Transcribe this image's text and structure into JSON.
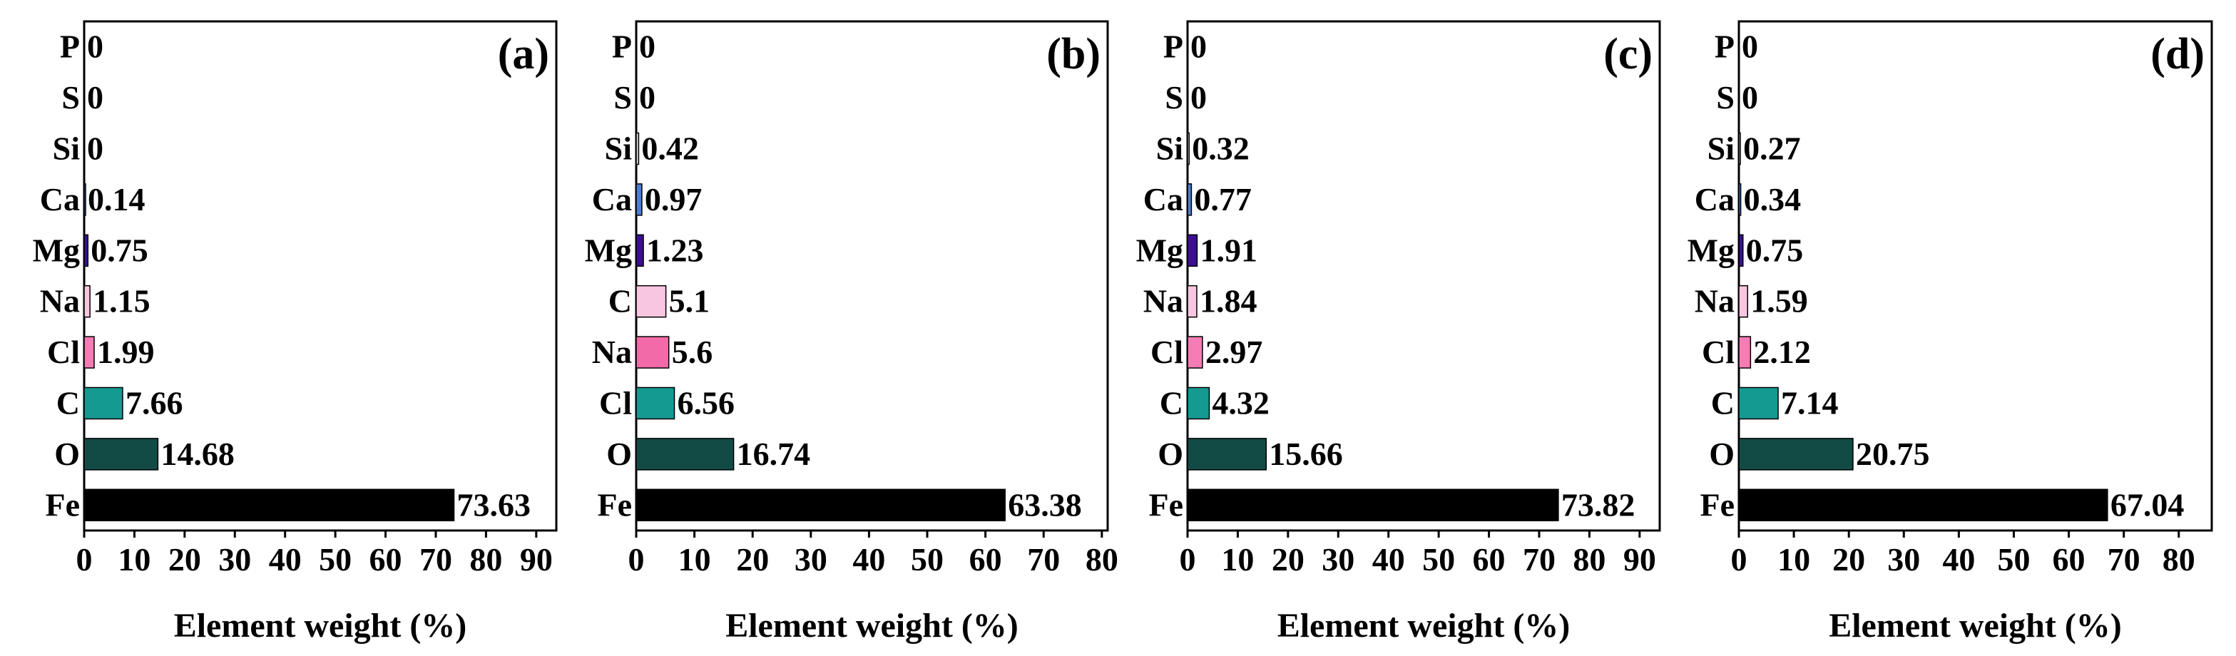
{
  "chart_data": [
    {
      "type": "bar",
      "orientation": "horizontal",
      "panel_label": "(a)",
      "xlabel": "Element weight (%)",
      "xlim": [
        0,
        94
      ],
      "xticks": [
        0,
        10,
        20,
        30,
        40,
        50,
        60,
        70,
        80,
        90
      ],
      "grid": false,
      "categories": [
        "Fe",
        "O",
        "C",
        "Cl",
        "Na",
        "Mg",
        "Ca",
        "Si",
        "S",
        "P"
      ],
      "values": [
        73.63,
        14.68,
        7.66,
        1.99,
        1.15,
        0.75,
        0.14,
        0,
        0,
        0
      ],
      "labels": [
        "73.63",
        "14.68",
        "7.66",
        "1.99",
        "1.15",
        "0.75",
        "0.14",
        "0",
        "0",
        "0"
      ],
      "colors": [
        "#000000",
        "#124b46",
        "#159a92",
        "#f77cb5",
        "#f9c6df",
        "#3b0f8f",
        "#4c7fcf",
        "#d9d9d9",
        "#ffffff",
        "#ffffff"
      ]
    },
    {
      "type": "bar",
      "orientation": "horizontal",
      "panel_label": "(b)",
      "xlabel": "Element weight (%)",
      "xlim": [
        0,
        81
      ],
      "xticks": [
        0,
        10,
        20,
        30,
        40,
        50,
        60,
        70,
        80
      ],
      "grid": false,
      "categories": [
        "Fe",
        "O",
        "Cl",
        "Na",
        "C",
        "Mg",
        "Ca",
        "Si",
        "S",
        "P"
      ],
      "values": [
        63.38,
        16.74,
        6.56,
        5.6,
        5.1,
        1.23,
        0.97,
        0.42,
        0,
        0
      ],
      "labels": [
        "63.38",
        "16.74",
        "6.56",
        "5.6",
        "5.1",
        "1.23",
        "0.97",
        "0.42",
        "0",
        "0"
      ],
      "colors": [
        "#000000",
        "#124b46",
        "#159a92",
        "#f36aa8",
        "#f9c6df",
        "#3b0f8f",
        "#4c7fcf",
        "#d9d9d9",
        "#ffffff",
        "#ffffff"
      ]
    },
    {
      "type": "bar",
      "orientation": "horizontal",
      "panel_label": "(c)",
      "xlabel": "Element weight (%)",
      "xlim": [
        0,
        94
      ],
      "xticks": [
        0,
        10,
        20,
        30,
        40,
        50,
        60,
        70,
        80,
        90
      ],
      "grid": false,
      "categories": [
        "Fe",
        "O",
        "C",
        "Cl",
        "Na",
        "Mg",
        "Ca",
        "Si",
        "S",
        "P"
      ],
      "values": [
        73.82,
        15.66,
        4.32,
        2.97,
        1.84,
        1.91,
        0.77,
        0.32,
        0,
        0
      ],
      "labels": [
        "73.82",
        "15.66",
        "4.32",
        "2.97",
        "1.84",
        "1.91",
        "0.77",
        "0.32",
        "0",
        "0"
      ],
      "colors": [
        "#000000",
        "#124b46",
        "#159a92",
        "#f77cb5",
        "#f9c6df",
        "#3b0f8f",
        "#4c7fcf",
        "#d9d9d9",
        "#ffffff",
        "#ffffff"
      ]
    },
    {
      "type": "bar",
      "orientation": "horizontal",
      "panel_label": "(d)",
      "xlabel": "Element weight (%)",
      "xlim": [
        0,
        86
      ],
      "xticks": [
        0,
        10,
        20,
        30,
        40,
        50,
        60,
        70,
        80
      ],
      "grid": false,
      "categories": [
        "Fe",
        "O",
        "C",
        "Cl",
        "Na",
        "Mg",
        "Ca",
        "Si",
        "S",
        "P"
      ],
      "values": [
        67.04,
        20.75,
        7.14,
        2.12,
        1.59,
        0.75,
        0.34,
        0.27,
        0,
        0
      ],
      "labels": [
        "67.04",
        "20.75",
        "7.14",
        "2.12",
        "1.59",
        "0.75",
        "0.34",
        "0.27",
        "0",
        "0"
      ],
      "colors": [
        "#000000",
        "#124b46",
        "#159a92",
        "#f77cb5",
        "#f9c6df",
        "#3b0f8f",
        "#4c7fcf",
        "#d9d9d9",
        "#ffffff",
        "#ffffff"
      ]
    }
  ]
}
